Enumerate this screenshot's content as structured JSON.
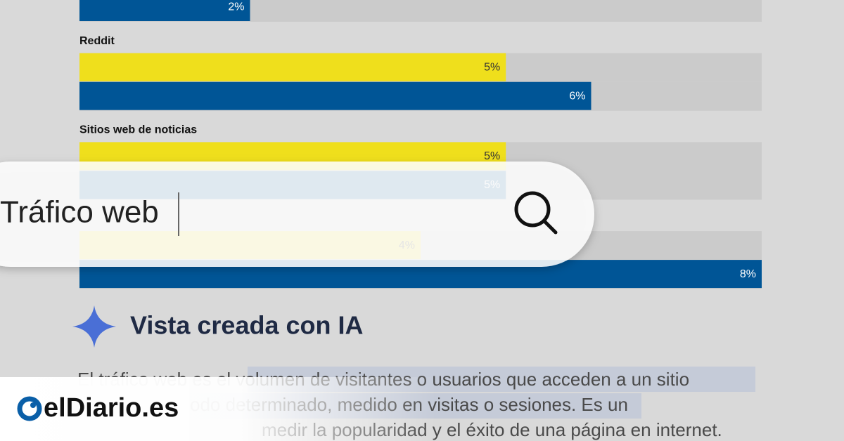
{
  "chart_data": {
    "type": "bar",
    "orientation": "horizontal",
    "categories": [
      null,
      "Reddit",
      "Sitios web de noticias",
      null
    ],
    "series": [
      {
        "color": "#efdf1c",
        "values": [
          null,
          5,
          5,
          4
        ],
        "value_labels": [
          null,
          "5%",
          "5%",
          "4%"
        ]
      },
      {
        "color": "#005596",
        "values": [
          2,
          6,
          5,
          8
        ],
        "value_labels": [
          "2%",
          "6%",
          "5%",
          "8%"
        ]
      }
    ],
    "xlim": [
      0,
      8
    ]
  },
  "search": {
    "query": "Tráfico web"
  },
  "ai_overview": {
    "heading": "Vista creada con IA",
    "lines": [
      "El tráfico web es el volumen de visitantes o usuarios que acceden a un sitio",
      "odo determinado, medido en visitas o sesiones. Es un",
      "medir la popularidad y el éxito de una página en internet."
    ]
  },
  "logo": {
    "text": "elDiario.es"
  }
}
